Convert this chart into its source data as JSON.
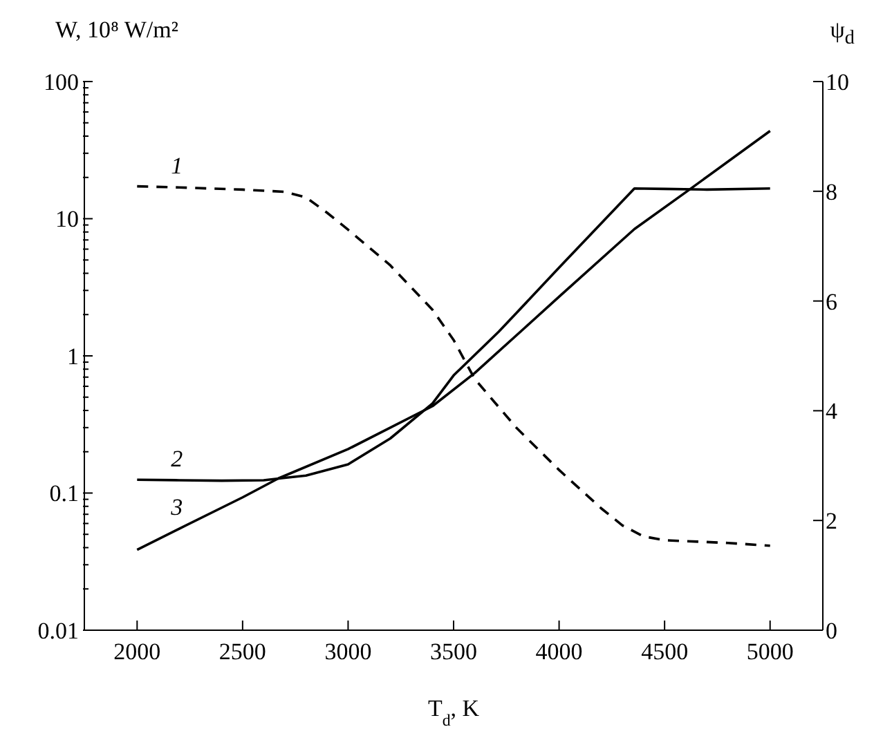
{
  "chart_data": {
    "type": "line",
    "xlabel": "T$_{d}$, K",
    "ylabel": "W, 10⁸ W/m²",
    "y2label": "ψ$_{d}$",
    "log": "y",
    "marker": "none",
    "line_style": "solid",
    "xlim": [
      1750,
      5250
    ],
    "xticks": [
      2000,
      2500,
      3000,
      3500,
      4000,
      4500,
      5000
    ],
    "ylim": [
      0.01,
      100
    ],
    "yticks": [
      0.01,
      {
        "value": 0.02,
        "label": null
      },
      {
        "value": 0.03,
        "label": null
      },
      {
        "value": 0.04,
        "label": null
      },
      {
        "value": 0.05,
        "label": null
      },
      {
        "value": 0.06,
        "label": null
      },
      {
        "value": 0.07,
        "label": null
      },
      {
        "value": 0.08,
        "label": null
      },
      {
        "value": 0.09,
        "label": null
      },
      0.1,
      {
        "value": 0.2,
        "label": null
      },
      {
        "value": 0.3,
        "label": null
      },
      {
        "value": 0.4,
        "label": null
      },
      {
        "value": 0.5,
        "label": null
      },
      {
        "value": 0.6,
        "label": null
      },
      {
        "value": 0.7,
        "label": null
      },
      {
        "value": 0.8,
        "label": null
      },
      {
        "value": 0.9,
        "label": null
      },
      1,
      {
        "value": 2,
        "label": null
      },
      {
        "value": 3,
        "label": null
      },
      {
        "value": 4,
        "label": null
      },
      {
        "value": 5,
        "label": null
      },
      {
        "value": 6,
        "label": null
      },
      {
        "value": 7,
        "label": null
      },
      {
        "value": 8,
        "label": null
      },
      {
        "value": 9,
        "label": null
      },
      10,
      {
        "value": 20,
        "label": null
      },
      {
        "value": 30,
        "label": null
      },
      {
        "value": 40,
        "label": null
      },
      {
        "value": 50,
        "label": null
      },
      {
        "value": 60,
        "label": null
      },
      {
        "value": 70,
        "label": null
      },
      {
        "value": 80,
        "label": null
      },
      {
        "value": 90,
        "label": null
      },
      100
    ],
    "y2lim": [
      0,
      10
    ],
    "y2ticks": [
      0,
      2,
      4,
      6,
      8,
      10
    ],
    "series": [
      {
        "name": "1",
        "color": "#000000",
        "axis": "y2",
        "line_style": "dashed",
        "x": [
          2000,
          2200,
          2500,
          2700,
          2800,
          2900,
          3000,
          3200,
          3400,
          3500,
          3600,
          3800,
          4000,
          4200,
          4300,
          4400,
          4500,
          4800,
          5000
        ],
        "values": [
          8.09,
          8.07,
          8.03,
          7.99,
          7.89,
          7.61,
          7.3,
          6.65,
          5.84,
          5.29,
          4.58,
          3.68,
          2.92,
          2.22,
          1.91,
          1.71,
          1.64,
          1.59,
          1.54
        ]
      },
      {
        "name": "2",
        "color": "#000000",
        "x": [
          2000,
          2200,
          2400,
          2600,
          2700,
          2800,
          3000,
          3200,
          3400,
          3500,
          3714,
          3800,
          4000,
          4357,
          4500,
          4700,
          5000
        ],
        "values": [
          0.125,
          0.124,
          0.123,
          0.124,
          0.129,
          0.134,
          0.162,
          0.25,
          0.45,
          0.72,
          1.5,
          2.07,
          4.4,
          16.6,
          16.5,
          16.3,
          16.6
        ]
      },
      {
        "name": "3",
        "color": "#000000",
        "x": [
          2000,
          2200,
          2500,
          2670,
          3000,
          3400,
          3600,
          3837,
          4000,
          4357,
          4620,
          5000
        ],
        "values": [
          0.0386,
          0.055,
          0.093,
          0.128,
          0.209,
          0.43,
          0.75,
          1.6,
          2.7,
          8.4,
          16.4,
          43.6
        ]
      }
    ]
  }
}
